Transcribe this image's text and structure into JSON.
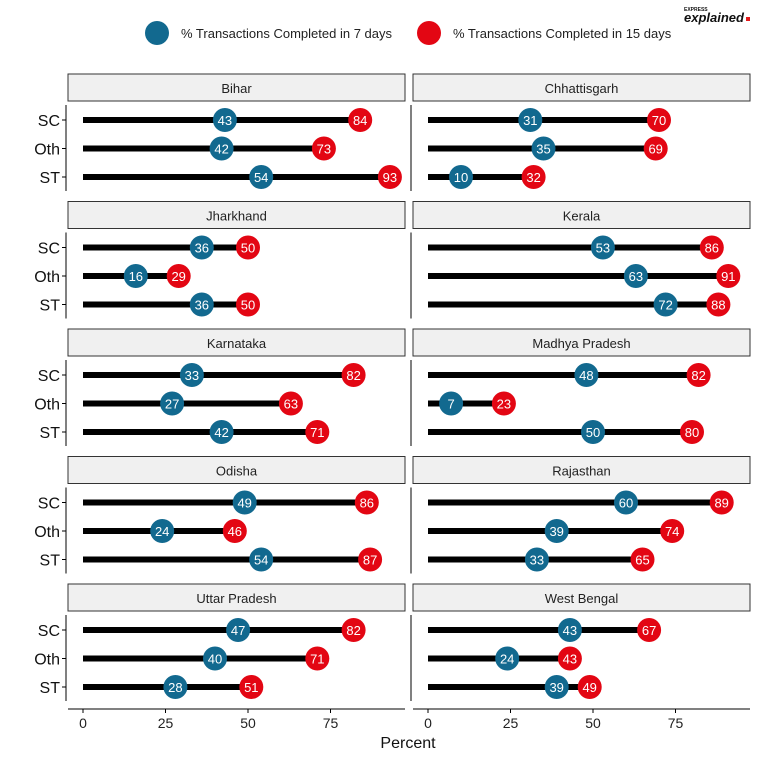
{
  "brand": {
    "top": "EXPRESS",
    "bottom": "explained",
    "dot_color": "#e41a1c"
  },
  "colors": {
    "days7": "#12698f",
    "days15": "#e30613",
    "segment": "#000000",
    "strip_bg": "#f0f0f0"
  },
  "legend": [
    {
      "key": "days7",
      "label": "% Transactions Completed in 7 days"
    },
    {
      "key": "days15",
      "label": "% Transactions Completed in 15 days"
    }
  ],
  "chart_data": {
    "type": "dumbbell",
    "xlabel": "Percent",
    "xlim": [
      0,
      100
    ],
    "xticks": [
      0,
      25,
      50,
      75
    ],
    "categories": [
      "SC",
      "Oth",
      "ST"
    ],
    "series": [
      {
        "name": "% Transactions Completed in 7 days",
        "key": "days7"
      },
      {
        "name": "% Transactions Completed in 15 days",
        "key": "days15"
      }
    ],
    "panels": [
      {
        "state": "Bihar",
        "rows": [
          {
            "cat": "SC",
            "d7": 43,
            "d15": 84
          },
          {
            "cat": "Oth",
            "d7": 42,
            "d15": 73
          },
          {
            "cat": "ST",
            "d7": 54,
            "d15": 93
          }
        ]
      },
      {
        "state": "Chhattisgarh",
        "rows": [
          {
            "cat": "SC",
            "d7": 31,
            "d15": 70
          },
          {
            "cat": "Oth",
            "d7": 35,
            "d15": 69
          },
          {
            "cat": "ST",
            "d7": 10,
            "d15": 32
          }
        ]
      },
      {
        "state": "Jharkhand",
        "rows": [
          {
            "cat": "SC",
            "d7": 36,
            "d15": 50
          },
          {
            "cat": "Oth",
            "d7": 16,
            "d15": 29
          },
          {
            "cat": "ST",
            "d7": 36,
            "d15": 50
          }
        ]
      },
      {
        "state": "Kerala",
        "rows": [
          {
            "cat": "SC",
            "d7": 53,
            "d15": 86
          },
          {
            "cat": "Oth",
            "d7": 63,
            "d15": 91
          },
          {
            "cat": "ST",
            "d7": 72,
            "d15": 88
          }
        ]
      },
      {
        "state": "Karnataka",
        "rows": [
          {
            "cat": "SC",
            "d7": 33,
            "d15": 82
          },
          {
            "cat": "Oth",
            "d7": 27,
            "d15": 63
          },
          {
            "cat": "ST",
            "d7": 42,
            "d15": 71
          }
        ]
      },
      {
        "state": "Madhya Pradesh",
        "rows": [
          {
            "cat": "SC",
            "d7": 48,
            "d15": 82
          },
          {
            "cat": "Oth",
            "d7": 7,
            "d15": 23
          },
          {
            "cat": "ST",
            "d7": 50,
            "d15": 80
          }
        ]
      },
      {
        "state": "Odisha",
        "rows": [
          {
            "cat": "SC",
            "d7": 49,
            "d15": 86
          },
          {
            "cat": "Oth",
            "d7": 24,
            "d15": 46
          },
          {
            "cat": "ST",
            "d7": 54,
            "d15": 87
          }
        ]
      },
      {
        "state": "Rajasthan",
        "rows": [
          {
            "cat": "SC",
            "d7": 60,
            "d15": 89
          },
          {
            "cat": "Oth",
            "d7": 39,
            "d15": 74
          },
          {
            "cat": "ST",
            "d7": 33,
            "d15": 65
          }
        ]
      },
      {
        "state": "Uttar Pradesh",
        "rows": [
          {
            "cat": "SC",
            "d7": 47,
            "d15": 82
          },
          {
            "cat": "Oth",
            "d7": 40,
            "d15": 71
          },
          {
            "cat": "ST",
            "d7": 28,
            "d15": 51
          }
        ]
      },
      {
        "state": "West Bengal",
        "rows": [
          {
            "cat": "SC",
            "d7": 43,
            "d15": 67
          },
          {
            "cat": "Oth",
            "d7": 24,
            "d15": 43
          },
          {
            "cat": "ST",
            "d7": 39,
            "d15": 49
          }
        ]
      }
    ]
  }
}
